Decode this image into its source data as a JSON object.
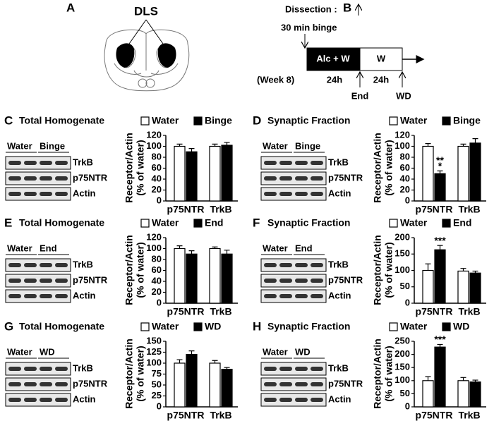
{
  "diagram_a": {
    "panel": "A",
    "label": "DLS"
  },
  "diagram_b": {
    "panel": "B",
    "dissection": "Dissection :",
    "binge": "30 min binge",
    "phase1": "Alc + W",
    "phase2": "W",
    "week": "(Week 8)",
    "duration1": "24h",
    "duration2": "24h",
    "end": "End",
    "wd": "WD"
  },
  "chart_data": [
    {
      "type": "bar",
      "panel": "C",
      "title": "Total Homogenate",
      "ylabel": [
        "Receptor/Actin",
        "(% of water)"
      ],
      "categories": [
        "p75NTR",
        "TrkB"
      ],
      "series": [
        {
          "name": "Water",
          "color": "#ffffff",
          "values": [
            100,
            100
          ],
          "errors": [
            4,
            4
          ]
        },
        {
          "name": "Binge",
          "color": "#000000",
          "values": [
            90,
            102
          ],
          "errors": [
            6,
            5
          ]
        }
      ],
      "ylim": [
        0,
        120
      ],
      "yticks": [
        0,
        20,
        40,
        60,
        80,
        100,
        120
      ],
      "blot": {
        "groups": [
          "Water",
          "Binge"
        ],
        "bands": [
          "TrkB",
          "p75NTR",
          "Actin"
        ]
      }
    },
    {
      "type": "bar",
      "panel": "D",
      "title": "Synaptic Fraction",
      "ylabel": [
        "Receptor/Actin",
        "(% of water)"
      ],
      "categories": [
        "p75NTR",
        "TrkB"
      ],
      "series": [
        {
          "name": "Water",
          "color": "#ffffff",
          "values": [
            100,
            100
          ],
          "errors": [
            5,
            4
          ]
        },
        {
          "name": "Binge",
          "color": "#000000",
          "values": [
            50,
            106
          ],
          "errors": [
            5,
            8
          ],
          "significance": [
            [
              "**",
              "*"
            ],
            null
          ]
        }
      ],
      "ylim": [
        0,
        120
      ],
      "yticks": [
        0,
        20,
        40,
        60,
        80,
        100,
        120
      ],
      "blot": {
        "groups": [
          "Water",
          "Binge"
        ],
        "bands": [
          "TrkB",
          "p75NTR",
          "Actin"
        ]
      }
    },
    {
      "type": "bar",
      "panel": "E",
      "title": "Total Homogenate",
      "ylabel": [
        "Receptor/Actin",
        "(% of water)"
      ],
      "categories": [
        "p75NTR",
        "TrkB"
      ],
      "series": [
        {
          "name": "Water",
          "color": "#ffffff",
          "values": [
            100,
            100
          ],
          "errors": [
            5,
            3
          ]
        },
        {
          "name": "End",
          "color": "#000000",
          "values": [
            90,
            90
          ],
          "errors": [
            6,
            7
          ]
        }
      ],
      "ylim": [
        0,
        120
      ],
      "yticks": [
        0,
        20,
        40,
        60,
        80,
        100,
        120
      ],
      "blot": {
        "groups": [
          "Water",
          "End"
        ],
        "bands": [
          "TrkB",
          "p75NTR",
          "Actin"
        ]
      }
    },
    {
      "type": "bar",
      "panel": "F",
      "title": "Synaptic Fraction",
      "ylabel": [
        "Receptor/Actin",
        "(% of water)"
      ],
      "categories": [
        "p75NTR",
        "TrkB"
      ],
      "series": [
        {
          "name": "Water",
          "color": "#ffffff",
          "values": [
            100,
            98
          ],
          "errors": [
            20,
            8
          ]
        },
        {
          "name": "End",
          "color": "#000000",
          "values": [
            163,
            92
          ],
          "errors": [
            13,
            6
          ],
          "significance": [
            [
              "***"
            ],
            null
          ]
        }
      ],
      "ylim": [
        0,
        200
      ],
      "yticks": [
        0,
        50,
        100,
        150,
        200
      ],
      "blot": {
        "groups": [
          "Water",
          "End"
        ],
        "bands": [
          "TrkB",
          "p75NTR",
          "Actin"
        ]
      }
    },
    {
      "type": "bar",
      "panel": "G",
      "title": "Total Homogenate",
      "ylabel": [
        "Receptor/Actin",
        "(% of water)"
      ],
      "categories": [
        "p75NTR",
        "TrkB"
      ],
      "series": [
        {
          "name": "Water",
          "color": "#ffffff",
          "values": [
            100,
            100
          ],
          "errors": [
            8,
            6
          ]
        },
        {
          "name": "WD",
          "color": "#000000",
          "values": [
            120,
            86
          ],
          "errors": [
            8,
            4
          ]
        }
      ],
      "ylim": [
        0,
        150
      ],
      "yticks": [
        0,
        25,
        50,
        75,
        100,
        125,
        150
      ],
      "blot": {
        "groups": [
          "Water",
          "WD"
        ],
        "bands": [
          "TrkB",
          "p75NTR",
          "Actin"
        ]
      }
    },
    {
      "type": "bar",
      "panel": "H",
      "title": "Synaptic Fraction",
      "ylabel": [
        "Receptor/Actin",
        "(% of water)"
      ],
      "categories": [
        "p75NTR",
        "TrkB"
      ],
      "series": [
        {
          "name": "Water",
          "color": "#ffffff",
          "values": [
            100,
            100
          ],
          "errors": [
            15,
            12
          ]
        },
        {
          "name": "WD",
          "color": "#000000",
          "values": [
            228,
            95
          ],
          "errors": [
            10,
            7
          ],
          "significance": [
            [
              "***"
            ],
            null
          ]
        }
      ],
      "ylim": [
        0,
        250
      ],
      "yticks": [
        0,
        50,
        100,
        150,
        200,
        250
      ],
      "blot": {
        "groups": [
          "Water",
          "WD"
        ],
        "bands": [
          "TrkB",
          "p75NTR",
          "Actin"
        ]
      }
    }
  ]
}
